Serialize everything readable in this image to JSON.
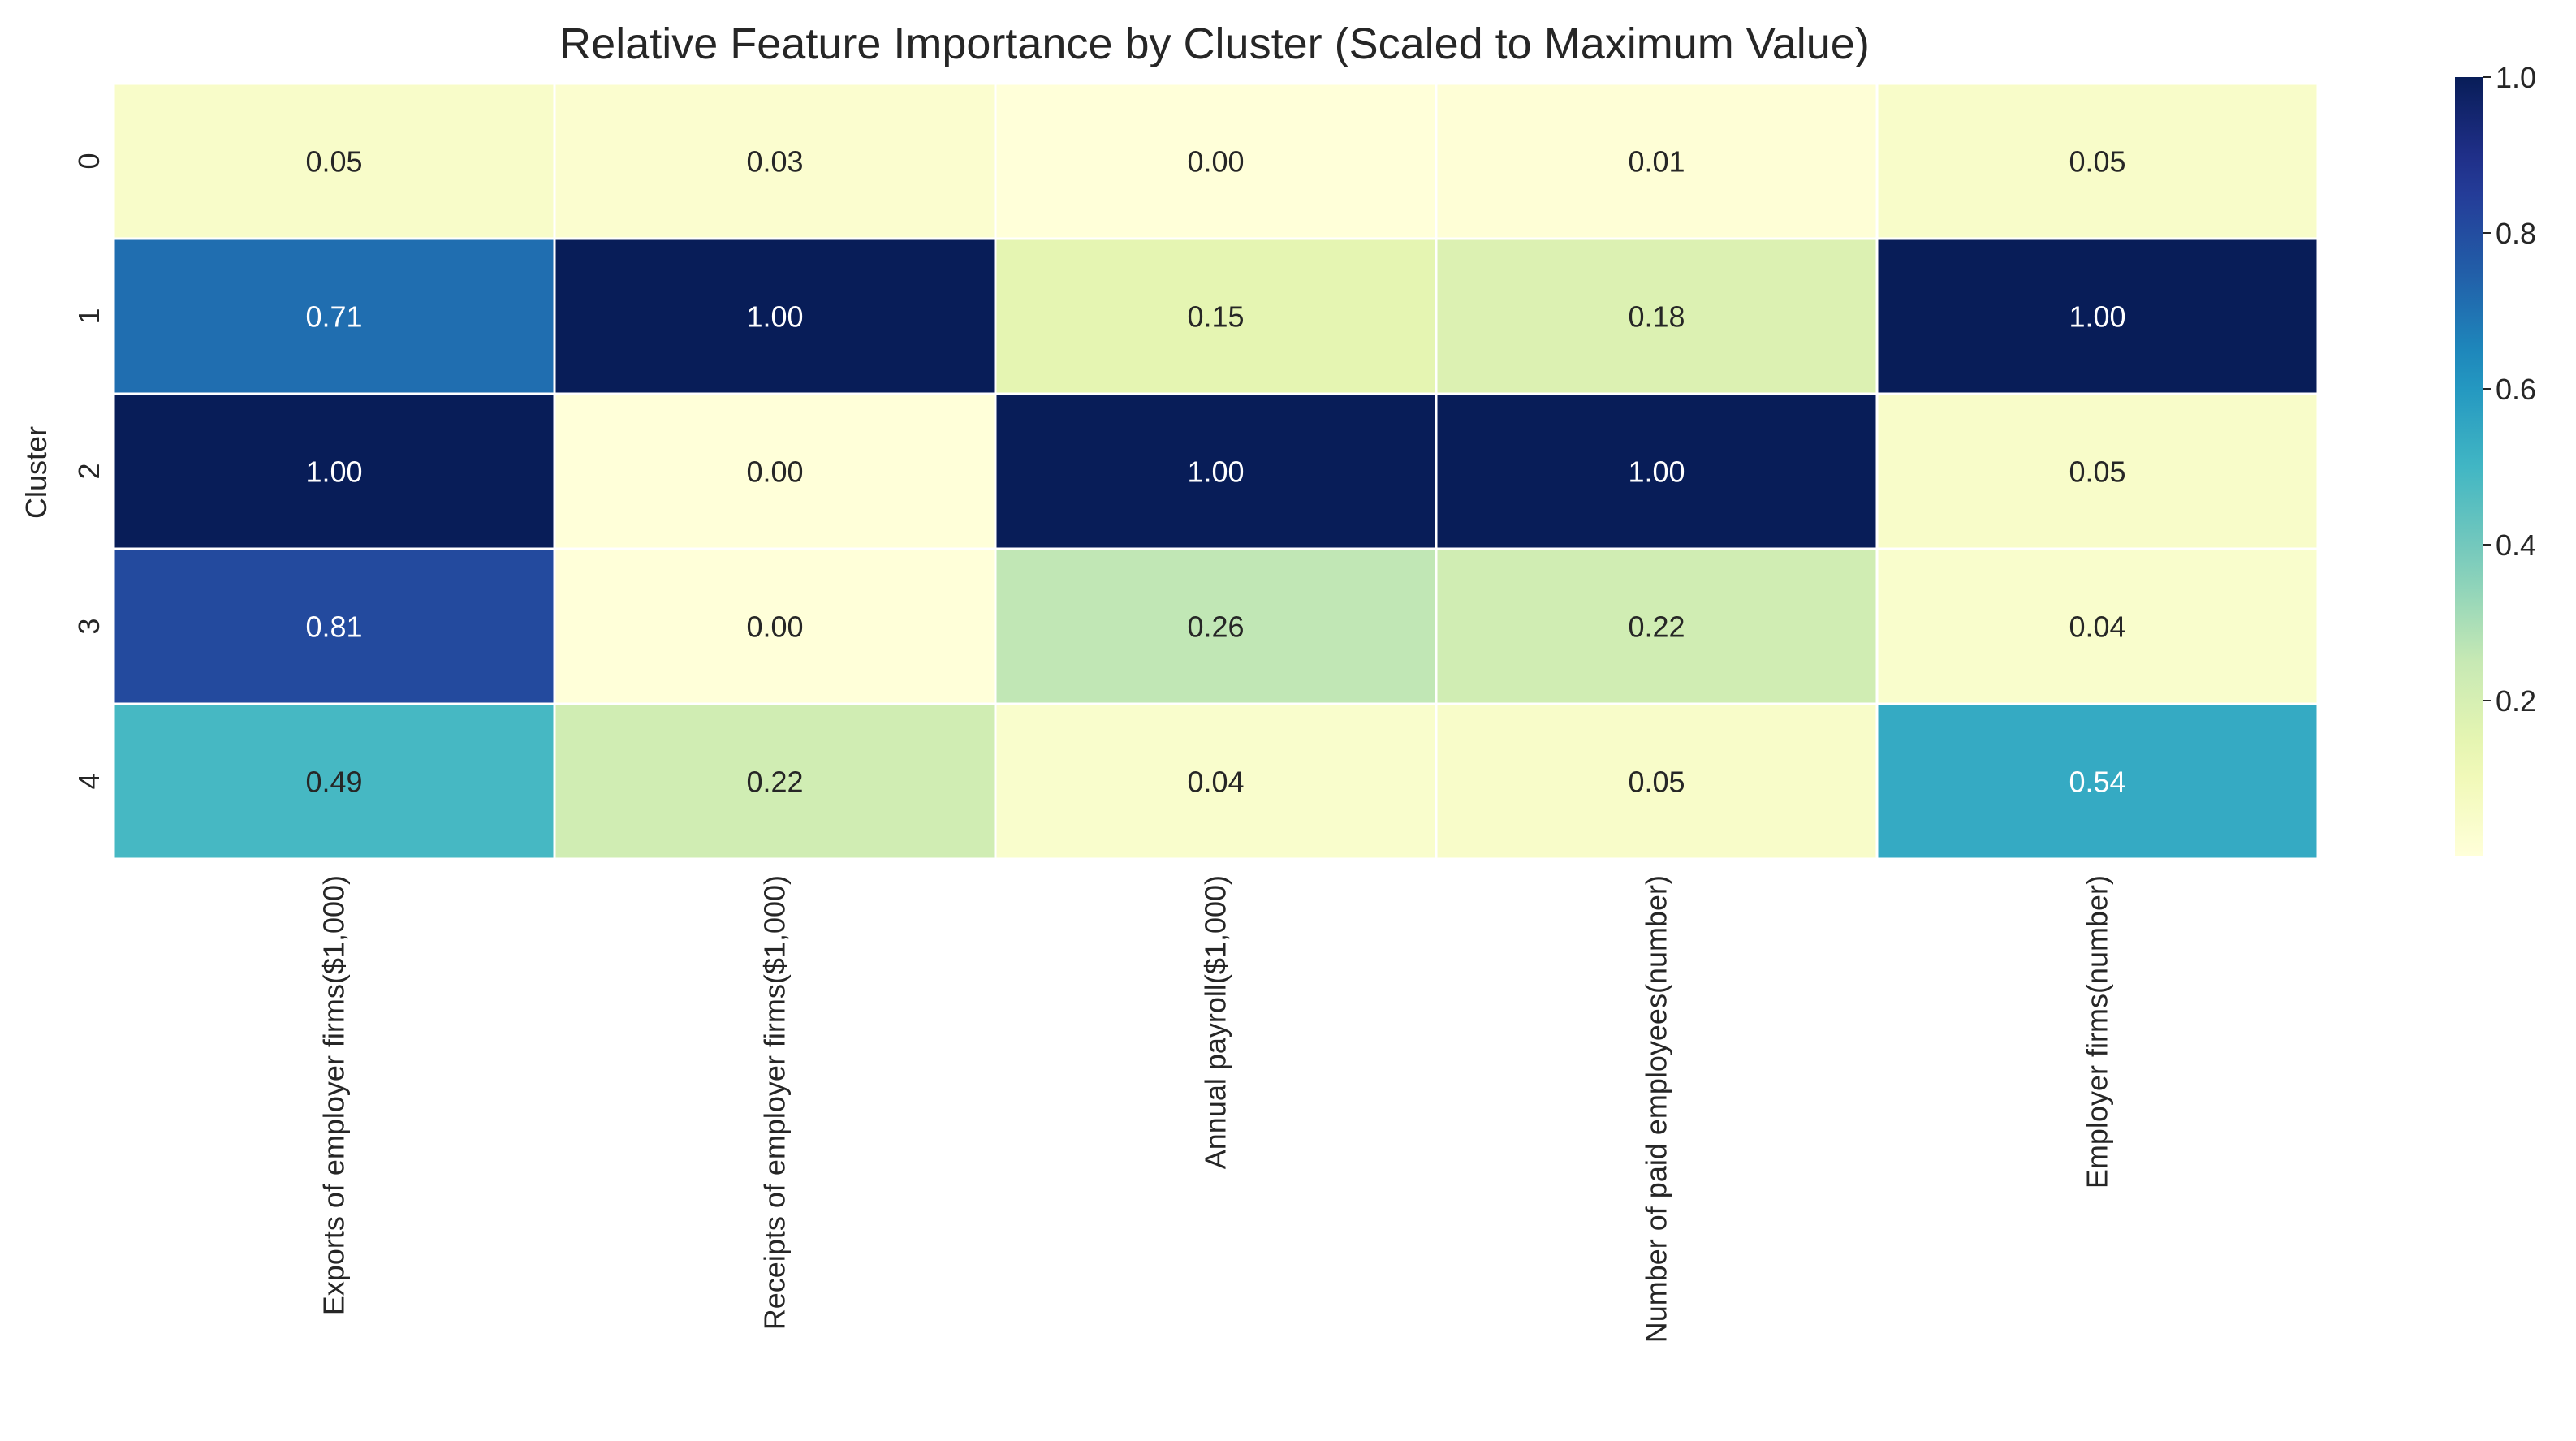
{
  "chart_data": {
    "type": "heatmap",
    "title": "Relative Feature Importance by Cluster (Scaled to Maximum Value)",
    "xlabel": "",
    "ylabel": "Cluster",
    "x_categories": [
      "Exports of employer firms($1,000)",
      "Receipts of employer firms($1,000)",
      "Annual payroll($1,000)",
      "Number of paid employees(number)",
      "Employer firms(number)"
    ],
    "y_categories": [
      "0",
      "1",
      "2",
      "3",
      "4"
    ],
    "values": [
      [
        0.05,
        0.03,
        0.0,
        0.01,
        0.05
      ],
      [
        0.71,
        1.0,
        0.15,
        0.18,
        1.0
      ],
      [
        1.0,
        0.0,
        1.0,
        1.0,
        0.05
      ],
      [
        0.81,
        0.0,
        0.26,
        0.22,
        0.04
      ],
      [
        0.49,
        0.22,
        0.04,
        0.05,
        0.54
      ]
    ],
    "value_labels": [
      [
        "0.05",
        "0.03",
        "0.00",
        "0.01",
        "0.05"
      ],
      [
        "0.71",
        "1.00",
        "0.15",
        "0.18",
        "1.00"
      ],
      [
        "1.00",
        "0.00",
        "1.00",
        "1.00",
        "0.05"
      ],
      [
        "0.81",
        "0.00",
        "0.26",
        "0.22",
        "0.04"
      ],
      [
        "0.49",
        "0.22",
        "0.04",
        "0.05",
        "0.54"
      ]
    ],
    "colormap": "YlGnBu",
    "colorbar": {
      "range": [
        0,
        1
      ],
      "ticks": [
        0.2,
        0.4,
        0.6,
        0.8,
        1.0
      ],
      "tick_labels": [
        "0.2",
        "0.4",
        "0.6",
        "0.8",
        "1.0"
      ]
    },
    "grid": false,
    "cell_border_color": "#ffffff"
  }
}
